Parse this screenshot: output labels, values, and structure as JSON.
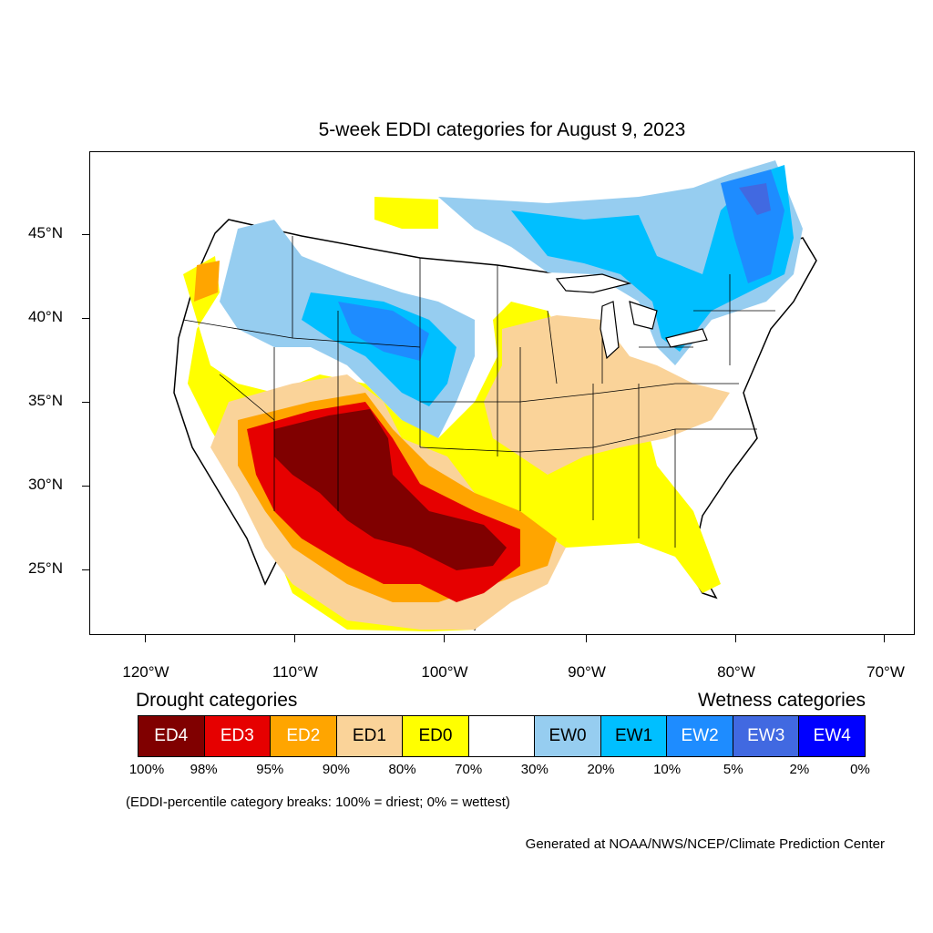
{
  "title": "5-week EDDI categories for August 9, 2023",
  "map": {
    "lat_labels": [
      "45°N",
      "40°N",
      "35°N",
      "30°N",
      "25°N"
    ],
    "lon_labels": [
      "120°W",
      "110°W",
      "100°W",
      "90°W",
      "80°W",
      "70°W"
    ]
  },
  "legend": {
    "drought_heading": "Drought categories",
    "wetness_heading": "Wetness categories",
    "categories": [
      {
        "label": "ED4",
        "color": "#800000",
        "text_color": "#ffffff"
      },
      {
        "label": "ED3",
        "color": "#e60000",
        "text_color": "#ffffff"
      },
      {
        "label": "ED2",
        "color": "#ffa500",
        "text_color": "#ffffff"
      },
      {
        "label": "ED1",
        "color": "#fad399",
        "text_color": "#000000"
      },
      {
        "label": "ED0",
        "color": "#ffff00",
        "text_color": "#000000"
      },
      {
        "label": "",
        "color": "#ffffff",
        "text_color": "#000000"
      },
      {
        "label": "EW0",
        "color": "#96cdf0",
        "text_color": "#000000"
      },
      {
        "label": "EW1",
        "color": "#00bfff",
        "text_color": "#000000"
      },
      {
        "label": "EW2",
        "color": "#1e8cff",
        "text_color": "#ffffff"
      },
      {
        "label": "EW3",
        "color": "#4169e1",
        "text_color": "#ffffff"
      },
      {
        "label": "EW4",
        "color": "#0000ff",
        "text_color": "#ffffff"
      }
    ],
    "breaks": [
      "100%",
      "98%",
      "95%",
      "90%",
      "80%",
      "70%",
      "30%",
      "20%",
      "10%",
      "5%",
      "2%",
      "0%"
    ]
  },
  "note": "(EDDI-percentile category breaks: 100% = driest; 0% = wettest)",
  "credit": "Generated at NOAA/NWS/NCEP/Climate Prediction Center"
}
